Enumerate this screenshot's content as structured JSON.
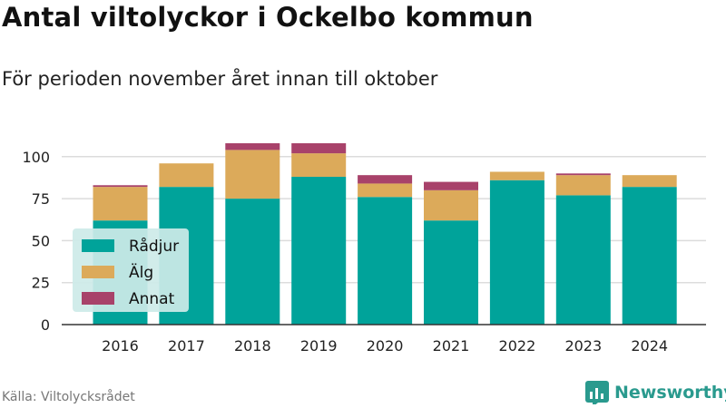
{
  "header": {
    "title": "Antal viltolyckor i Ockelbo kommun",
    "subtitle": "För perioden november året innan till oktober"
  },
  "footer": {
    "source": "Källa: Viltolycksrådet",
    "brand": "Newsworthy"
  },
  "colors": {
    "radjur": "#00a39a",
    "alg": "#dcaa5a",
    "annat": "#a8426a",
    "grid": "#dcdcdc",
    "legend_bg": "#cdeae8"
  },
  "chart_data": {
    "type": "bar",
    "stacked": true,
    "categories": [
      "2016",
      "2017",
      "2018",
      "2019",
      "2020",
      "2021",
      "2022",
      "2023",
      "2024"
    ],
    "series": [
      {
        "name": "Rådjur",
        "values": [
          62,
          82,
          75,
          88,
          76,
          62,
          86,
          77,
          82
        ]
      },
      {
        "name": "Älg",
        "values": [
          20,
          14,
          29,
          14,
          8,
          18,
          5,
          12,
          7
        ]
      },
      {
        "name": "Annat",
        "values": [
          1,
          0,
          4,
          6,
          5,
          5,
          0,
          1,
          0
        ]
      }
    ],
    "y_ticks": [
      0,
      25,
      50,
      75,
      100
    ],
    "ylim": [
      0,
      110
    ],
    "grid": true,
    "legend": "bottom-left"
  }
}
